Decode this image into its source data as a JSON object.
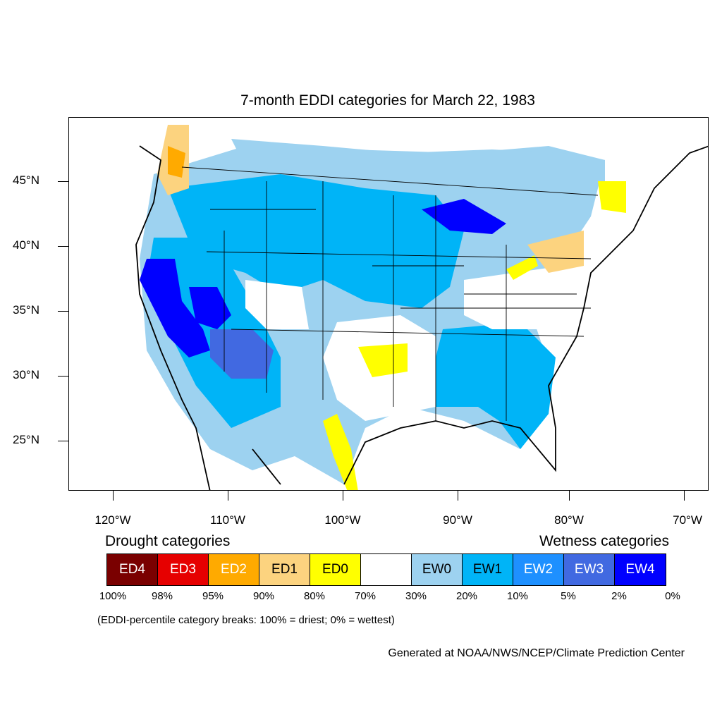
{
  "title": "7-month EDDI categories for March 22, 1983",
  "map": {
    "latitude_labels": [
      "45°N",
      "40°N",
      "35°N",
      "30°N",
      "25°N"
    ],
    "longitude_labels": [
      "120°W",
      "110°W",
      "100°W",
      "90°W",
      "80°W",
      "70°W"
    ],
    "colors": {
      "ED4": "#7a0000",
      "ED3": "#e60000",
      "ED2": "#ffaa00",
      "ED1": "#fcd37f",
      "ED0": "#ffff00",
      "neutral": "#ffffff",
      "EW0": "#9dd2f0",
      "EW1": "#00b4f7",
      "EW2": "#1e90ff",
      "EW3": "#4169e1",
      "EW4": "#0000ff"
    },
    "regions": [
      {
        "category": "EW1",
        "area": "Pacific Northwest to Northern Plains"
      },
      {
        "category": "EW4",
        "area": "California and Nevada"
      },
      {
        "category": "EW4",
        "area": "Utah and Colorado Plateau"
      },
      {
        "category": "EW3",
        "area": "Arizona and New Mexico"
      },
      {
        "category": "EW1",
        "area": "Southeast and Gulf Coast"
      },
      {
        "category": "EW4",
        "area": "Upper Michigan"
      },
      {
        "category": "ED0",
        "area": "Oklahoma"
      },
      {
        "category": "ED0",
        "area": "South Texas"
      },
      {
        "category": "ED1",
        "area": "Pennsylvania and New York"
      },
      {
        "category": "ED2",
        "area": "Washington coast"
      },
      {
        "category": "ED0",
        "area": "Maine"
      }
    ]
  },
  "legend": {
    "drought_heading": "Drought categories",
    "wetness_heading": "Wetness categories",
    "categories": [
      {
        "label": "ED4",
        "color": "#7a0000",
        "text_color": "#ffffff"
      },
      {
        "label": "ED3",
        "color": "#e60000",
        "text_color": "#ffffff"
      },
      {
        "label": "ED2",
        "color": "#ffaa00",
        "text_color": "#ffffff"
      },
      {
        "label": "ED1",
        "color": "#fcd37f",
        "text_color": "#000000"
      },
      {
        "label": "ED0",
        "color": "#ffff00",
        "text_color": "#000000"
      },
      {
        "label": "",
        "color": "#ffffff",
        "text_color": "#000000"
      },
      {
        "label": "EW0",
        "color": "#9dd2f0",
        "text_color": "#000000"
      },
      {
        "label": "EW1",
        "color": "#00b4f7",
        "text_color": "#000000"
      },
      {
        "label": "EW2",
        "color": "#1e90ff",
        "text_color": "#ffffff"
      },
      {
        "label": "EW3",
        "color": "#4169e1",
        "text_color": "#ffffff"
      },
      {
        "label": "EW4",
        "color": "#0000ff",
        "text_color": "#ffffff"
      }
    ],
    "percentiles": [
      "100%",
      "98%",
      "95%",
      "90%",
      "80%",
      "70%",
      "30%",
      "20%",
      "10%",
      "5%",
      "2%",
      "0%"
    ],
    "note": "(EDDI-percentile category breaks: 100% = driest; 0% = wettest)"
  },
  "credit": "Generated at NOAA/NWS/NCEP/Climate Prediction Center"
}
